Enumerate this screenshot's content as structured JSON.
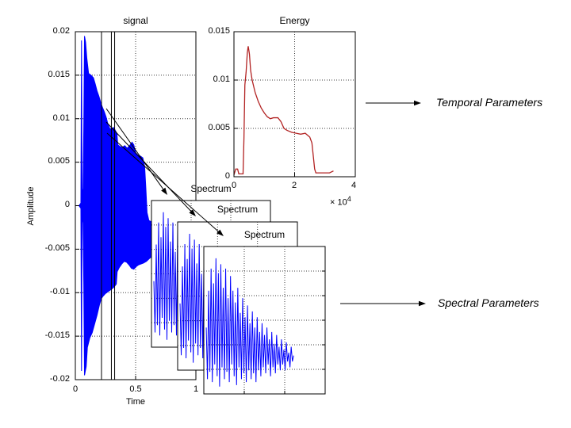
{
  "window": {
    "background": "#ffffff"
  },
  "colors": {
    "signal_trace": "#0000ff",
    "energy_trace": "#b22222",
    "axis": "#000000",
    "grid": "#3c3c3c"
  },
  "annotations": {
    "temporal_label": "Temporal Parameters",
    "spectral_label": "Spectral Parameters"
  },
  "chart_data": [
    {
      "id": "signal",
      "type": "area",
      "title": "signal",
      "xlabel": "Time",
      "ylabel": "Amplitude",
      "xlim": [
        0,
        1
      ],
      "ylim": [
        -0.02,
        0.02
      ],
      "xticks": [
        0,
        0.5,
        1
      ],
      "xtick_labels": [
        "0",
        "0.5",
        "1"
      ],
      "yticks": [
        0.02,
        0.015,
        0.01,
        0.005,
        0,
        -0.005,
        -0.01,
        -0.015,
        -0.02
      ],
      "ytick_labels": [
        "0.02",
        "0.015",
        "0.01",
        "0.005",
        "0",
        "-0.005",
        "-0.01",
        "-0.015",
        "-0.02"
      ],
      "grid": true,
      "legend": "none",
      "window_markers_x": [
        0.217,
        0.299,
        0.326
      ],
      "series": [
        {
          "name": "upper_envelope",
          "points": [
            [
              0.03,
              0.0
            ],
            [
              0.046,
              0.0003
            ],
            [
              0.051,
              0.019
            ],
            [
              0.056,
              0.001
            ],
            [
              0.064,
              0.002
            ],
            [
              0.07,
              0.009
            ],
            [
              0.076,
              0.0195
            ],
            [
              0.085,
              0.0188
            ],
            [
              0.095,
              0.017
            ],
            [
              0.11,
              0.0152
            ],
            [
              0.13,
              0.015
            ],
            [
              0.15,
              0.0147
            ],
            [
              0.165,
              0.014
            ],
            [
              0.18,
              0.0132
            ],
            [
              0.195,
              0.0126
            ],
            [
              0.21,
              0.0119
            ],
            [
              0.225,
              0.0113
            ],
            [
              0.24,
              0.0108
            ],
            [
              0.255,
              0.0102
            ],
            [
              0.27,
              0.0094
            ],
            [
              0.285,
              0.0089
            ],
            [
              0.3,
              0.0088
            ],
            [
              0.315,
              0.009
            ],
            [
              0.33,
              0.0087
            ],
            [
              0.345,
              0.0083
            ],
            [
              0.352,
              0.007
            ],
            [
              0.37,
              0.0068
            ],
            [
              0.39,
              0.0067
            ],
            [
              0.41,
              0.0069
            ],
            [
              0.43,
              0.0066
            ],
            [
              0.45,
              0.0069
            ],
            [
              0.47,
              0.0073
            ],
            [
              0.485,
              0.007
            ],
            [
              0.5,
              0.0061
            ],
            [
              0.52,
              0.0058
            ],
            [
              0.54,
              0.0057
            ],
            [
              0.56,
              0.0055
            ],
            [
              0.575,
              0.0045
            ],
            [
              0.585,
              0.002
            ],
            [
              0.595,
              -0.0008
            ],
            [
              0.61,
              -0.0017
            ],
            [
              0.65,
              -0.002
            ]
          ]
        },
        {
          "name": "lower_envelope",
          "points": [
            [
              0.03,
              0.0
            ],
            [
              0.046,
              -0.0003
            ],
            [
              0.051,
              -0.019
            ],
            [
              0.056,
              -0.001
            ],
            [
              0.064,
              -0.002
            ],
            [
              0.07,
              -0.009
            ],
            [
              0.076,
              -0.0195
            ],
            [
              0.09,
              -0.0185
            ],
            [
              0.1,
              -0.0163
            ],
            [
              0.12,
              -0.0152
            ],
            [
              0.14,
              -0.0146
            ],
            [
              0.16,
              -0.0136
            ],
            [
              0.18,
              -0.0126
            ],
            [
              0.2,
              -0.0114
            ],
            [
              0.215,
              -0.0107
            ],
            [
              0.23,
              -0.0104
            ],
            [
              0.25,
              -0.0101
            ],
            [
              0.27,
              -0.0099
            ],
            [
              0.29,
              -0.0097
            ],
            [
              0.31,
              -0.0095
            ],
            [
              0.33,
              -0.0092
            ],
            [
              0.34,
              -0.009
            ],
            [
              0.347,
              -0.0076
            ],
            [
              0.365,
              -0.0071
            ],
            [
              0.385,
              -0.0067
            ],
            [
              0.405,
              -0.0064
            ],
            [
              0.425,
              -0.0065
            ],
            [
              0.445,
              -0.0068
            ],
            [
              0.465,
              -0.0072
            ],
            [
              0.485,
              -0.0073
            ],
            [
              0.505,
              -0.007
            ],
            [
              0.525,
              -0.0068
            ],
            [
              0.545,
              -0.0067
            ],
            [
              0.565,
              -0.0066
            ],
            [
              0.59,
              -0.0064
            ],
            [
              0.62,
              -0.006
            ],
            [
              0.65,
              -0.0058
            ]
          ]
        }
      ]
    },
    {
      "id": "energy",
      "type": "line",
      "title": "Energy",
      "xlim": [
        0,
        4
      ],
      "ylim": [
        0,
        0.015
      ],
      "xticks": [
        0,
        2,
        4
      ],
      "xtick_labels": [
        "0",
        "2",
        "4"
      ],
      "x_scale_base": "× 10",
      "x_scale_exp": "4",
      "yticks": [
        0.015,
        0.01,
        0.005,
        0
      ],
      "ytick_labels": [
        "0.015",
        "0.01",
        "0.005",
        "0"
      ],
      "grid": true,
      "points": [
        [
          0.0,
          0.0002
        ],
        [
          0.06,
          0.0008
        ],
        [
          0.12,
          0.0008
        ],
        [
          0.16,
          0.0003
        ],
        [
          0.3,
          0.0003
        ],
        [
          0.33,
          0.004
        ],
        [
          0.36,
          0.0095
        ],
        [
          0.4,
          0.0108
        ],
        [
          0.44,
          0.0128
        ],
        [
          0.47,
          0.0135
        ],
        [
          0.51,
          0.0127
        ],
        [
          0.55,
          0.011
        ],
        [
          0.6,
          0.01
        ],
        [
          0.7,
          0.0087
        ],
        [
          0.8,
          0.0078
        ],
        [
          0.9,
          0.0071
        ],
        [
          1.0,
          0.0066
        ],
        [
          1.1,
          0.0062
        ],
        [
          1.2,
          0.006
        ],
        [
          1.3,
          0.0061
        ],
        [
          1.45,
          0.0061
        ],
        [
          1.55,
          0.0057
        ],
        [
          1.65,
          0.005
        ],
        [
          1.75,
          0.0048
        ],
        [
          1.9,
          0.0046
        ],
        [
          2.05,
          0.0045
        ],
        [
          2.2,
          0.0044
        ],
        [
          2.35,
          0.0045
        ],
        [
          2.5,
          0.0041
        ],
        [
          2.57,
          0.0035
        ],
        [
          2.62,
          0.002
        ],
        [
          2.66,
          0.0008
        ],
        [
          2.7,
          0.0004
        ],
        [
          2.85,
          0.0004
        ],
        [
          3.0,
          0.0004
        ],
        [
          3.15,
          0.0004
        ],
        [
          3.28,
          0.0006
        ]
      ]
    },
    {
      "id": "spectrum",
      "type": "line",
      "title": "Spectrum",
      "copies": 3,
      "axes_labeled": false,
      "grid": true,
      "coords": "normalized 0-1 inside each cascaded window, y measured from top",
      "x_start": 0.02,
      "x_step": 0.01,
      "y_normalized": [
        0.55,
        0.9,
        0.3,
        0.85,
        0.15,
        0.92,
        0.25,
        0.8,
        0.08,
        0.88,
        0.18,
        0.95,
        0.12,
        0.82,
        0.28,
        0.9,
        0.15,
        0.85,
        0.35,
        0.92,
        0.2,
        0.8,
        0.3,
        0.88,
        0.38,
        0.94,
        0.28,
        0.82,
        0.45,
        0.9,
        0.35,
        0.86,
        0.48,
        0.92,
        0.4,
        0.84,
        0.52,
        0.9,
        0.44,
        0.86,
        0.55,
        0.92,
        0.48,
        0.84,
        0.58,
        0.88,
        0.52,
        0.82,
        0.6,
        0.86,
        0.55,
        0.8,
        0.63,
        0.88,
        0.58,
        0.82,
        0.66,
        0.86,
        0.6,
        0.8,
        0.68,
        0.84,
        0.63,
        0.8,
        0.7,
        0.84,
        0.65,
        0.78,
        0.72,
        0.82,
        0.68,
        0.78,
        0.74
      ]
    }
  ]
}
